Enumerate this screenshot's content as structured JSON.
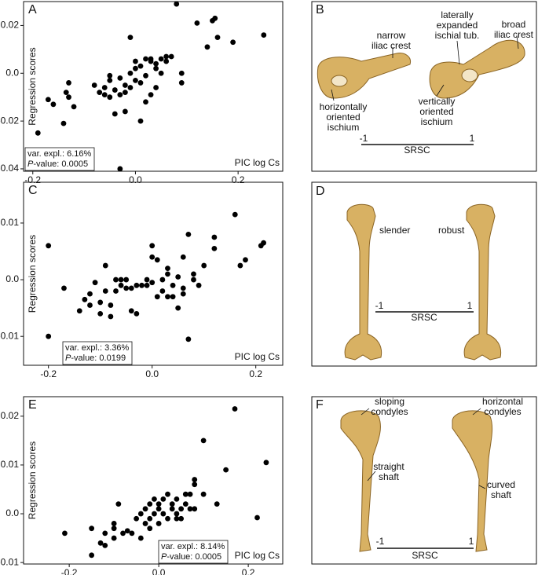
{
  "chart_data": [
    {
      "type": "scatter",
      "panel": "A",
      "ylabel": "Regression scores",
      "xlabel": "PIC log Cs",
      "color": "#000000",
      "stats": {
        "var_expl": "var. expl.: 6.16%",
        "p_label": "P",
        "p_value": "-value: 0.0005"
      },
      "xlim": [
        -0.218,
        0.287
      ],
      "ylim": [
        -0.041,
        0.03
      ],
      "xticks": [
        -0.2,
        {
          "value": 0,
          "label": "0.0"
        },
        0.2
      ],
      "yticks": [
        0.02,
        {
          "value": 0,
          "label": "0.0"
        },
        -0.02,
        -0.04
      ],
      "x": [
        -0.19,
        -0.17,
        -0.16,
        -0.14,
        -0.13,
        -0.135,
        -0.12,
        -0.13,
        -0.05,
        -0.07,
        -0.06,
        -0.05,
        -0.04,
        -0.04,
        -0.03,
        -0.03,
        -0.02,
        -0.02,
        -0.01,
        -0.01,
        0.0,
        0.0,
        0.01,
        0.01,
        0.02,
        0.02,
        0.03,
        0.03,
        0.04,
        0.04,
        0.05,
        0.05,
        0.06,
        0.06,
        0.07,
        0.08,
        0.09,
        0.09,
        0.01,
        -0.02,
        -0.03,
        -0.01,
        0.12,
        0.15,
        0.155,
        0.16,
        0.14,
        0.19,
        0.25,
        -0.08,
        -0.06,
        0.03,
        0.0,
        -0.05,
        0.02,
        0.04
      ],
      "values": [
        -0.025,
        -0.011,
        -0.013,
        -0.021,
        -0.004,
        -0.008,
        -0.014,
        -0.01,
        -0.001,
        -0.008,
        -0.006,
        -0.003,
        -0.007,
        -0.017,
        -0.009,
        -0.002,
        -0.005,
        -0.008,
        -0.006,
        0.0,
        -0.003,
        0.002,
        -0.004,
        0.003,
        0.006,
        -0.001,
        0.005,
        0.006,
        0.002,
        -0.006,
        0.006,
        0.0,
        0.007,
        0.005,
        0.007,
        0.029,
        0.0,
        -0.004,
        -0.02,
        -0.016,
        -0.04,
        0.015,
        0.021,
        0.022,
        0.023,
        0.015,
        0.011,
        0.013,
        0.016,
        -0.005,
        -0.009,
        -0.009,
        0.005,
        -0.01,
        -0.012,
        0.004
      ]
    },
    {
      "type": "scatter",
      "panel": "C",
      "ylabel": "Regression scores",
      "xlabel": "PIC log Cs",
      "color": "#000000",
      "stats": {
        "var_expl": "var. expl.: 3.36%",
        "p_label": "P",
        "p_value": "-value: 0.0199"
      },
      "xlim": [
        -0.248,
        0.252
      ],
      "ylim": [
        -0.0151,
        0.0172
      ],
      "xticks": [
        -0.2,
        {
          "value": 0,
          "label": "0.0"
        },
        0.2
      ],
      "yticks": [
        0.01,
        {
          "value": 0,
          "label": "0.0"
        },
        -0.01
      ],
      "x": [
        -0.2,
        -0.2,
        -0.17,
        -0.14,
        -0.13,
        -0.12,
        -0.12,
        -0.11,
        -0.1,
        -0.1,
        -0.09,
        -0.09,
        -0.08,
        -0.08,
        -0.07,
        -0.07,
        -0.06,
        -0.06,
        -0.05,
        -0.05,
        -0.04,
        -0.03,
        -0.03,
        -0.02,
        -0.01,
        0.0,
        0.0,
        0.0,
        0.01,
        0.01,
        0.02,
        0.03,
        0.03,
        0.04,
        0.04,
        0.05,
        0.05,
        0.06,
        0.06,
        0.07,
        0.07,
        0.08,
        0.08,
        0.09,
        0.1,
        0.12,
        0.12,
        0.16,
        0.17,
        0.18,
        0.21,
        0.215,
        -0.04,
        0.02,
        0.03,
        -0.01,
        0.06
      ],
      "values": [
        0.006,
        -0.01,
        -0.0015,
        -0.0055,
        -0.0035,
        -0.0045,
        -0.0025,
        -0.0005,
        -0.006,
        -0.004,
        -0.002,
        0.0025,
        -0.0045,
        -0.0065,
        0.0,
        -0.002,
        -0.001,
        0.0,
        -0.0015,
        0.0,
        -0.0015,
        -0.001,
        -0.006,
        -0.001,
        0.0,
        -0.0005,
        0.004,
        0.006,
        0.0035,
        -0.003,
        0.0,
        0.001,
        0.002,
        -0.001,
        -0.003,
        0.0005,
        -0.005,
        -0.0025,
        0.004,
        0.008,
        -0.0105,
        0.001,
        0.0,
        -0.001,
        0.0025,
        0.0075,
        0.0055,
        0.0115,
        0.0025,
        0.0035,
        0.006,
        0.0065,
        -0.0055,
        -0.002,
        -0.003,
        -0.001,
        -0.0015
      ]
    },
    {
      "type": "scatter",
      "panel": "E",
      "ylabel": "Regression scores",
      "xlabel": "PIC log Cs",
      "color": "#000000",
      "stats": {
        "var_expl": "var. expl.: 8.14%",
        "p_label": "P",
        "p_value": "-value: 0.0005"
      },
      "xlim": [
        -0.302,
        0.277
      ],
      "ylim": [
        -0.0103,
        0.024
      ],
      "xticks": [
        -0.2,
        {
          "value": 0,
          "label": "0.0"
        },
        0.2
      ],
      "yticks": [
        0.02,
        0.01,
        {
          "value": 0,
          "label": "0.0"
        },
        -0.01
      ],
      "x": [
        -0.21,
        -0.15,
        -0.15,
        -0.13,
        -0.12,
        -0.12,
        -0.1,
        -0.1,
        -0.09,
        -0.1,
        -0.05,
        -0.06,
        -0.04,
        -0.04,
        -0.03,
        -0.03,
        -0.02,
        -0.02,
        -0.01,
        -0.01,
        0.0,
        0.0,
        0.01,
        0.01,
        0.02,
        0.02,
        0.03,
        0.03,
        0.04,
        0.04,
        0.05,
        0.05,
        0.06,
        0.06,
        0.07,
        0.07,
        0.08,
        0.08,
        0.08,
        0.1,
        0.1,
        0.13,
        0.15,
        0.17,
        0.22,
        0.24,
        -0.08,
        -0.07,
        0.0,
        -0.02,
        0.04
      ],
      "values": [
        -0.004,
        -0.003,
        -0.0085,
        -0.006,
        -0.0065,
        -0.004,
        -0.002,
        -0.005,
        0.002,
        -0.003,
        -0.001,
        -0.004,
        -0.005,
        0.0,
        -0.002,
        0.001,
        0.002,
        -0.001,
        0.003,
        0.0,
        0.002,
        -0.002,
        0.0,
        0.003,
        0.004,
        -0.001,
        0.001,
        0.002,
        0.0,
        0.003,
        0.001,
        -0.001,
        0.002,
        0.004,
        0.001,
        0.004,
        0.007,
        0.006,
        0.001,
        0.015,
        0.004,
        0.002,
        0.009,
        0.0215,
        -0.0008,
        0.0105,
        -0.004,
        -0.0035,
        0.001,
        -0.003,
        -0.001
      ]
    }
  ],
  "illustrations": [
    {
      "panel": "B",
      "annotations": [
        [
          "narrow",
          "iliac crest"
        ],
        [
          "laterally",
          "expanded",
          "ischial tub."
        ],
        [
          "broad",
          "iliac crest"
        ],
        [
          "horizontally",
          "oriented",
          "ischium"
        ],
        [
          "vertically",
          "oriented",
          "ischium"
        ]
      ],
      "scale": {
        "min": "-1",
        "max": "1",
        "label": "SRSC"
      }
    },
    {
      "panel": "D",
      "annotations": [
        [
          "slender"
        ],
        [
          "robust"
        ]
      ],
      "scale": {
        "min": "-1",
        "max": "1",
        "label": "SRSC"
      }
    },
    {
      "panel": "F",
      "annotations": [
        [
          "sloping",
          "condyles"
        ],
        [
          "straight",
          "shaft"
        ],
        [
          "horizontal",
          "condyles"
        ],
        [
          "curved",
          "shaft"
        ]
      ],
      "scale": {
        "min": "-1",
        "max": "1",
        "label": "SRSC"
      }
    }
  ]
}
